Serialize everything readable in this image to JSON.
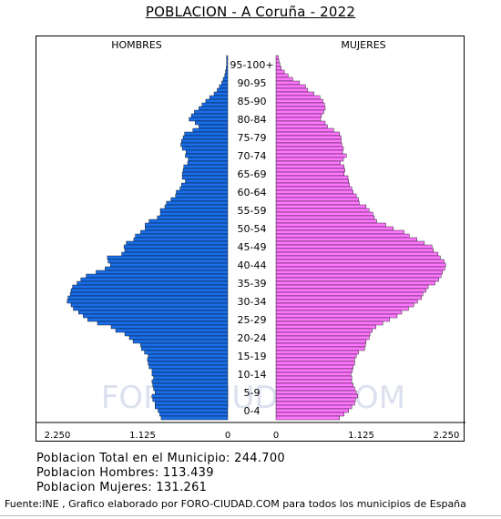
{
  "chart_data": {
    "type": "population-pyramid",
    "title": "POBLACION - A Coruña - 2022",
    "left_label": "HOMBRES",
    "right_label": "MUJERES",
    "age_group_labels": [
      "95-100+",
      "90-95",
      "85-90",
      "80-84",
      "75-79",
      "70-74",
      "65-69",
      "60-64",
      "55-59",
      "50-54",
      "45-49",
      "40-44",
      "35-39",
      "30-34",
      "25-29",
      "20-24",
      "15-19",
      "10-14",
      "5-9",
      "0-4"
    ],
    "x_ticks_left": [
      "2.250",
      "1.125",
      "0"
    ],
    "x_ticks_right": [
      "0",
      "1.125",
      "2.250"
    ],
    "x_max": 2250,
    "single_year_ages": [
      "0-99+ (one bar per year of age, top bar = oldest)"
    ],
    "men_by_age_desc": [
      15,
      15,
      15,
      20,
      30,
      40,
      60,
      80,
      110,
      140,
      180,
      240,
      290,
      340,
      380,
      440,
      480,
      510,
      430,
      380,
      460,
      570,
      590,
      610,
      620,
      600,
      550,
      560,
      520,
      530,
      580,
      590,
      600,
      600,
      560,
      610,
      630,
      680,
      690,
      750,
      810,
      830,
      890,
      890,
      930,
      1040,
      1090,
      1090,
      1150,
      1220,
      1240,
      1340,
      1370,
      1360,
      1400,
      1590,
      1580,
      1550,
      1620,
      1740,
      1870,
      1940,
      1990,
      2050,
      2070,
      2080,
      2110,
      2120,
      2070,
      2040,
      1970,
      1910,
      1850,
      1720,
      1540,
      1480,
      1360,
      1300,
      1250,
      1150,
      1140,
      1100,
      1050,
      1060,
      1050,
      1040,
      1000,
      1000,
      980,
      1000,
      990,
      980,
      960,
      1000,
      990,
      960,
      960,
      920,
      900,
      880
    ],
    "women_by_age_desc": [
      30,
      40,
      50,
      70,
      110,
      160,
      220,
      310,
      390,
      420,
      500,
      580,
      620,
      640,
      650,
      630,
      600,
      590,
      650,
      680,
      760,
      840,
      860,
      860,
      870,
      890,
      880,
      930,
      890,
      850,
      900,
      910,
      900,
      950,
      960,
      970,
      1000,
      1020,
      1060,
      1090,
      1100,
      1190,
      1230,
      1280,
      1300,
      1330,
      1450,
      1550,
      1690,
      1760,
      1860,
      1960,
      2060,
      2080,
      2140,
      2170,
      2220,
      2240,
      2230,
      2200,
      2180,
      2150,
      2100,
      2010,
      1980,
      1940,
      1920,
      1870,
      1820,
      1750,
      1660,
      1600,
      1500,
      1410,
      1320,
      1270,
      1240,
      1230,
      1190,
      1180,
      1170,
      1090,
      1060,
      1040,
      1040,
      1020,
      1010,
      990,
      1000,
      1000,
      1020,
      1040,
      1060,
      1080,
      1050,
      1040,
      1000,
      960,
      900,
      840
    ],
    "watermark": "FORO-CIUDAD.COM"
  },
  "stats": {
    "total": "Poblacion Total en el Municipio: 244.700",
    "men": "Poblacion Hombres: 113.439",
    "women": "Poblacion Mujeres: 131.261"
  },
  "source": "Fuente:INE , Grafico elaborado por FORO-CIUDAD.COM para todos los municipios de España",
  "colors": {
    "men": "#1a6ee8",
    "women": "#ff77ff",
    "bar_edge": "#000000",
    "watermark": "#dde0ee"
  }
}
